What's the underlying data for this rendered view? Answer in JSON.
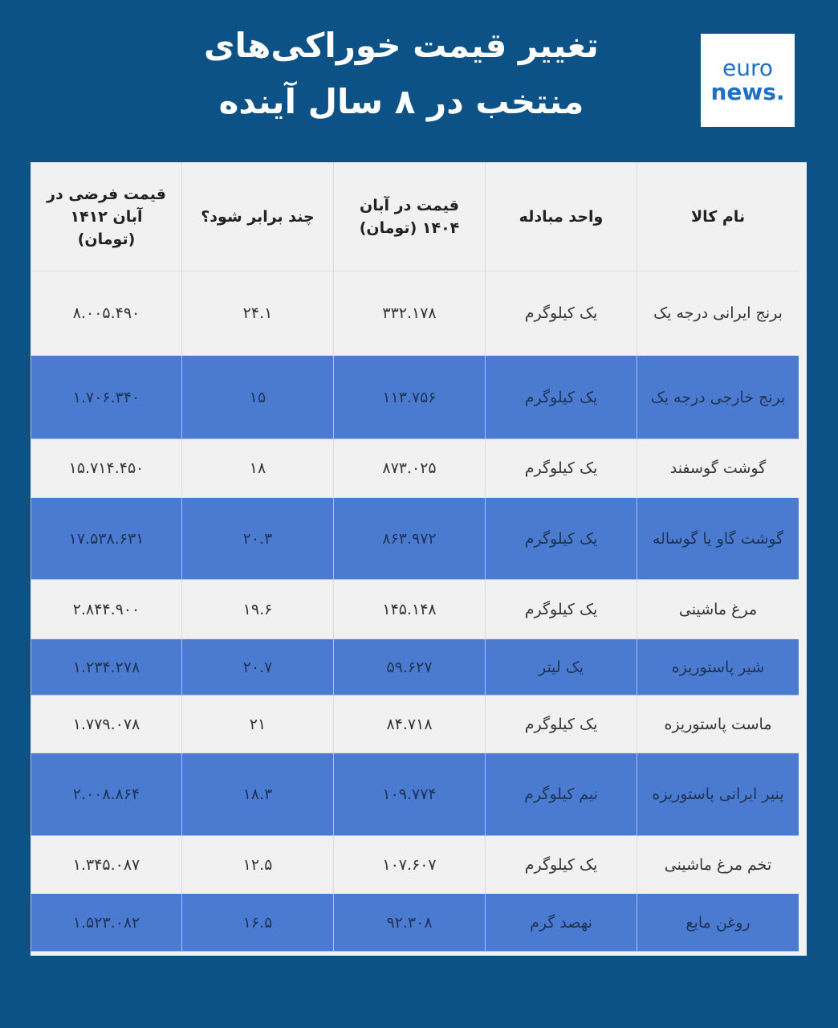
{
  "title": {
    "line1": "تغییر قیمت خوراکی‌های",
    "line2": "منتخب در ۸ سال آینده"
  },
  "logo": {
    "line1": "euro",
    "line2": "news."
  },
  "colors": {
    "background": "#0d5286",
    "highlight_row": "#4a7bd0",
    "plain_row": "#f1f1f1"
  },
  "table": {
    "headers": [
      "نام کالا",
      "واحد مبادله",
      "قیمت در آبان ۱۴۰۴ (تومان)",
      "چند برابر شود؟",
      "قیمت فرضی در آبان ۱۴۱۲ (تومان)"
    ],
    "rows": [
      [
        "برنج ایرانی درجه یک",
        "یک کیلوگرم",
        "۳۳۲.۱۷۸",
        "۲۴.۱",
        "۸.۰۰۵.۴۹۰"
      ],
      [
        "برنج خارجی درجه یک",
        "یک کیلوگرم",
        "۱۱۳.۷۵۶",
        "۱۵",
        "۱.۷۰۶.۳۴۰"
      ],
      [
        "گوشت گوسفند",
        "یک کیلوگرم",
        "۸۷۳.۰۲۵",
        "۱۸",
        "۱۵.۷۱۴.۴۵۰"
      ],
      [
        "گوشت گاو یا گوساله",
        "یک کیلوگرم",
        "۸۶۳.۹۷۲",
        "۲۰.۳",
        "۱۷.۵۳۸.۶۳۱"
      ],
      [
        "مرغ ماشینی",
        "یک کیلوگرم",
        "۱۴۵.۱۴۸",
        "۱۹.۶",
        "۲.۸۴۴.۹۰۰"
      ],
      [
        "شیر پاستوریزه",
        "یک لیتر",
        "۵۹.۶۲۷",
        "۲۰.۷",
        "۱.۲۳۴.۲۷۸"
      ],
      [
        "ماست پاستوریزه",
        "یک کیلوگرم",
        "۸۴.۷۱۸",
        "۲۱",
        "۱.۷۷۹.۰۷۸"
      ],
      [
        "پنیر ایرانی پاستوریزه",
        "نیم کیلوگرم",
        "۱۰۹.۷۷۴",
        "۱۸.۳",
        "۲.۰۰۸.۸۶۴"
      ],
      [
        "تخم مرغ ماشینی",
        "یک کیلوگرم",
        "۱۰۷.۶۰۷",
        "۱۲.۵",
        "۱.۳۴۵.۰۸۷"
      ],
      [
        "روغن مایع",
        "نهصد گرم",
        "۹۲.۳۰۸",
        "۱۶.۵",
        "۱.۵۲۳.۰۸۲"
      ]
    ]
  }
}
